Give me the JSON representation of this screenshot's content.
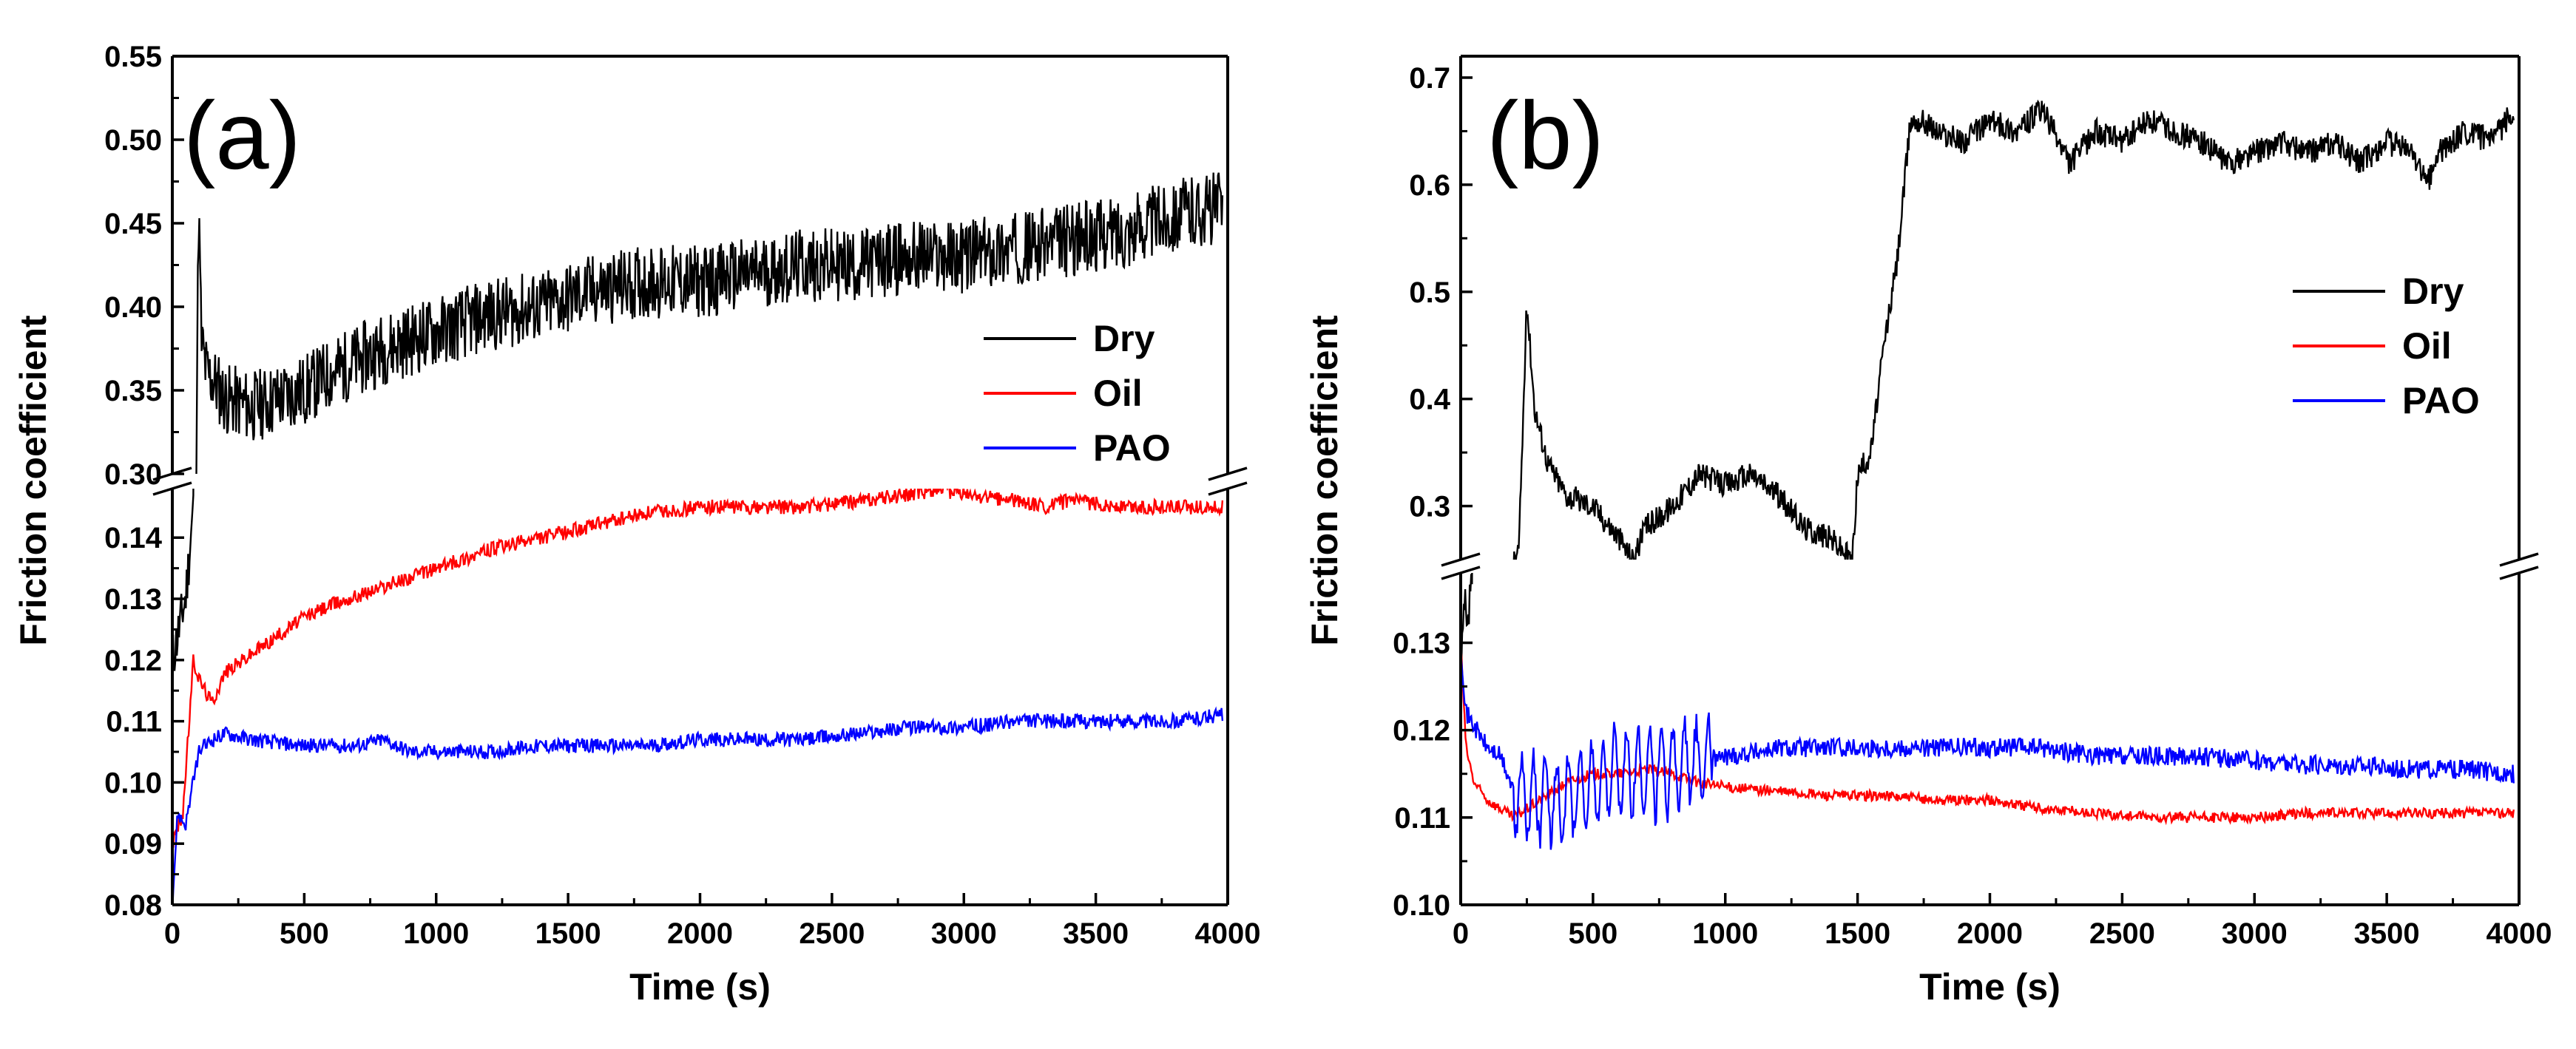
{
  "chart_data": [
    {
      "panel_label": "(a)",
      "type": "line",
      "xlabel": "Time (s)",
      "ylabel": "Friction coefficient",
      "xlim": [
        0,
        4000
      ],
      "x_ticks": [
        "0",
        "500",
        "1000",
        "1500",
        "2000",
        "2500",
        "3000",
        "3500",
        "4000"
      ],
      "y_break": {
        "upper": {
          "ylim": [
            0.3,
            0.55
          ],
          "ticks": [
            "0.30",
            "0.35",
            "0.40",
            "0.45",
            "0.50",
            "0.55"
          ]
        },
        "lower": {
          "ylim": [
            0.08,
            0.148
          ],
          "ticks": [
            "0.08",
            "0.09",
            "0.10",
            "0.11",
            "0.12",
            "0.13",
            "0.14"
          ]
        }
      },
      "legend_position": "right",
      "series": [
        {
          "name": "Dry",
          "color": "#000000",
          "x": [
            0,
            50,
            80,
            100,
            110,
            130,
            160,
            200,
            300,
            400,
            500,
            600,
            800,
            1000,
            1200,
            1400,
            1600,
            1800,
            2000,
            2200,
            2400,
            2600,
            2800,
            3000,
            3200,
            3400,
            3600,
            3800,
            3980
          ],
          "y": [
            0.12,
            0.13,
            0.145,
            0.46,
            0.38,
            0.36,
            0.355,
            0.345,
            0.34,
            0.345,
            0.35,
            0.36,
            0.375,
            0.385,
            0.395,
            0.4,
            0.41,
            0.415,
            0.415,
            0.42,
            0.425,
            0.425,
            0.43,
            0.43,
            0.435,
            0.44,
            0.445,
            0.455,
            0.46
          ],
          "noise": 0.022,
          "noise_region": "upper"
        },
        {
          "name": "Oil",
          "color": "#ff0000",
          "x": [
            0,
            40,
            80,
            100,
            150,
            200,
            300,
            400,
            500,
            600,
            800,
            1000,
            1200,
            1400,
            1600,
            1800,
            2000,
            2200,
            2400,
            2600,
            2800,
            2900,
            3000,
            3200,
            3300,
            3400,
            3600,
            3800,
            3980
          ],
          "y": [
            0.09,
            0.095,
            0.12,
            0.117,
            0.113,
            0.118,
            0.121,
            0.124,
            0.127,
            0.129,
            0.132,
            0.135,
            0.138,
            0.14,
            0.142,
            0.144,
            0.145,
            0.145,
            0.145,
            0.146,
            0.147,
            0.148,
            0.147,
            0.146,
            0.145,
            0.146,
            0.145,
            0.145,
            0.145
          ],
          "noise": 0.0012,
          "noise_region": "lower"
        },
        {
          "name": "PAO",
          "color": "#0000ff",
          "x": [
            0,
            20,
            50,
            100,
            150,
            200,
            300,
            500,
            700,
            800,
            900,
            1000,
            1200,
            1400,
            1600,
            1800,
            2000,
            2200,
            2400,
            2600,
            2800,
            3000,
            3200,
            3400,
            3600,
            3800,
            3980
          ],
          "y": [
            0.08,
            0.095,
            0.093,
            0.105,
            0.107,
            0.108,
            0.107,
            0.106,
            0.106,
            0.107,
            0.105,
            0.105,
            0.105,
            0.106,
            0.106,
            0.106,
            0.107,
            0.107,
            0.107,
            0.108,
            0.109,
            0.109,
            0.11,
            0.11,
            0.11,
            0.11,
            0.111
          ],
          "noise": 0.0012,
          "noise_region": "lower"
        }
      ]
    },
    {
      "panel_label": "(b)",
      "type": "line",
      "xlabel": "Time (s)",
      "ylabel": "Friction coefficient",
      "xlim": [
        0,
        4000
      ],
      "x_ticks": [
        "0",
        "500",
        "1000",
        "1500",
        "2000",
        "2500",
        "3000",
        "3500",
        "4000"
      ],
      "y_break": {
        "upper": {
          "ylim": [
            0.25,
            0.72
          ],
          "ticks": [
            "0.3",
            "0.4",
            "0.5",
            "0.6",
            "0.7"
          ]
        },
        "lower": {
          "ylim": [
            0.1,
            0.138
          ],
          "ticks": [
            "0.10",
            "0.11",
            "0.12",
            "0.13"
          ]
        }
      },
      "legend_position": "right",
      "series": [
        {
          "name": "Dry",
          "color": "#000000",
          "x": [
            0,
            15,
            25,
            40,
            220,
            250,
            280,
            330,
            400,
            500,
            600,
            650,
            700,
            800,
            900,
            1000,
            1100,
            1200,
            1300,
            1400,
            1480,
            1500,
            1550,
            1600,
            1650,
            1700,
            1750,
            1800,
            1900,
            2000,
            2100,
            2200,
            2300,
            2400,
            2500,
            2600,
            2700,
            2800,
            2900,
            3000,
            3100,
            3200,
            3300,
            3400,
            3500,
            3600,
            3650,
            3700,
            3800,
            3900,
            3980
          ],
          "y": [
            0.125,
            0.135,
            0.13,
            0.138,
            0.26,
            0.49,
            0.39,
            0.34,
            0.31,
            0.3,
            0.27,
            0.25,
            0.28,
            0.3,
            0.33,
            0.32,
            0.33,
            0.31,
            0.28,
            0.27,
            0.25,
            0.33,
            0.35,
            0.45,
            0.53,
            0.66,
            0.66,
            0.65,
            0.64,
            0.66,
            0.65,
            0.67,
            0.62,
            0.65,
            0.64,
            0.66,
            0.65,
            0.64,
            0.62,
            0.63,
            0.64,
            0.63,
            0.64,
            0.62,
            0.64,
            0.63,
            0.6,
            0.63,
            0.65,
            0.64,
            0.67
          ],
          "noise": 0.012,
          "noise_region": "upper"
        },
        {
          "name": "Oil",
          "color": "#ff0000",
          "x": [
            0,
            20,
            50,
            100,
            150,
            200,
            250,
            300,
            400,
            500,
            600,
            700,
            800,
            900,
            1000,
            1200,
            1400,
            1600,
            1800,
            2000,
            2200,
            2400,
            2600,
            2800,
            3000,
            3200,
            3400,
            3600,
            3800,
            3980
          ],
          "y": [
            0.13,
            0.118,
            0.114,
            0.112,
            0.111,
            0.11,
            0.111,
            0.112,
            0.114,
            0.115,
            0.115,
            0.1155,
            0.115,
            0.114,
            0.1135,
            0.113,
            0.1125,
            0.1125,
            0.112,
            0.112,
            0.111,
            0.1105,
            0.11,
            0.11,
            0.11,
            0.1105,
            0.1105,
            0.1105,
            0.1105,
            0.1105
          ],
          "noise": 0.0006,
          "noise_region": "lower"
        },
        {
          "name": "PAO",
          "color": "#0000ff",
          "x": [
            0,
            20,
            40,
            60,
            100,
            150,
            200,
            300,
            400,
            500,
            600,
            700,
            800,
            900,
            1000,
            1200,
            1400,
            1600,
            1800,
            2000,
            2200,
            2400,
            2600,
            2800,
            3000,
            3200,
            3400,
            3600,
            3800,
            3980
          ],
          "y": [
            0.13,
            0.122,
            0.121,
            0.12,
            0.118,
            0.117,
            0.113,
            0.112,
            0.112,
            0.114,
            0.115,
            0.115,
            0.116,
            0.1165,
            0.117,
            0.118,
            0.118,
            0.118,
            0.118,
            0.118,
            0.118,
            0.117,
            0.117,
            0.117,
            0.1165,
            0.116,
            0.116,
            0.1155,
            0.1155,
            0.115
          ],
          "noise": 0.0011,
          "noise_region": "lower",
          "oscillation": {
            "x_from": 200,
            "x_to": 950,
            "amplitude": 0.0055
          }
        }
      ]
    }
  ]
}
